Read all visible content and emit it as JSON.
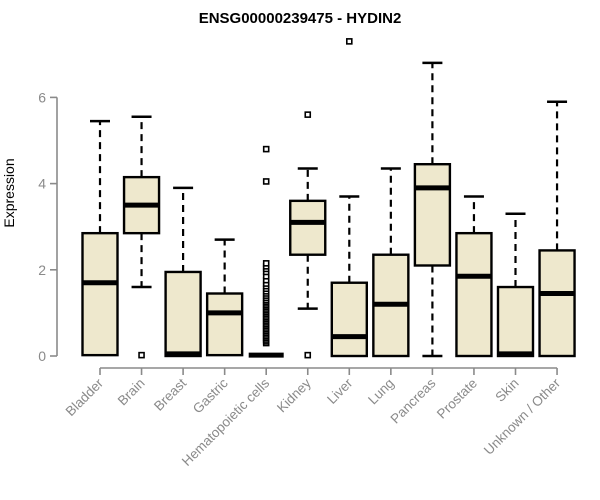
{
  "title": "ENSG00000239475 - HYDIN2",
  "chart_data": {
    "type": "boxplot",
    "title": "ENSG00000239475 - HYDIN2",
    "xlabel": "",
    "ylabel": "Expression",
    "ylim": [
      -0.3,
      7.5
    ],
    "yticks": [
      0,
      2,
      4,
      6
    ],
    "grid": false,
    "legend": false,
    "categories": [
      "Bladder",
      "Brain",
      "Breast",
      "Gastric",
      "Hematopoietic cells",
      "Kidney",
      "Liver",
      "Lung",
      "Pancreas",
      "Prostate",
      "Skin",
      "Unknown / Other"
    ],
    "boxes": [
      {
        "category": "Bladder",
        "whisker_low": 0.02,
        "q1": 0.02,
        "median": 1.7,
        "q3": 2.85,
        "whisker_high": 5.45,
        "outliers": []
      },
      {
        "category": "Brain",
        "whisker_low": 1.6,
        "q1": 2.85,
        "median": 3.5,
        "q3": 4.15,
        "whisker_high": 5.55,
        "outliers": [
          0.02
        ]
      },
      {
        "category": "Breast",
        "whisker_low": 0,
        "q1": 0,
        "median": 0.05,
        "q3": 1.95,
        "whisker_high": 3.9,
        "outliers": []
      },
      {
        "category": "Gastric",
        "whisker_low": 0.02,
        "q1": 0.02,
        "median": 1.0,
        "q3": 1.45,
        "whisker_high": 2.7,
        "outliers": []
      },
      {
        "category": "Hematopoietic cells",
        "whisker_low": 0,
        "q1": 0,
        "median": 0.02,
        "q3": 0,
        "whisker_high": 0,
        "outliers": [
          0.3,
          0.34,
          0.38,
          0.42,
          0.46,
          0.5,
          0.54,
          0.58,
          0.62,
          0.66,
          0.7,
          0.74,
          0.78,
          0.82,
          0.86,
          0.9,
          0.94,
          0.98,
          1.02,
          1.06,
          1.1,
          1.14,
          1.18,
          1.22,
          1.26,
          1.3,
          1.35,
          1.4,
          1.45,
          1.5,
          1.56,
          1.62,
          1.68,
          1.76,
          1.85,
          1.95,
          2.02,
          2.08,
          2.15,
          4.05,
          4.8
        ]
      },
      {
        "category": "Kidney",
        "whisker_low": 1.1,
        "q1": 2.35,
        "median": 3.1,
        "q3": 3.6,
        "whisker_high": 4.35,
        "outliers": [
          0.02,
          5.6
        ]
      },
      {
        "category": "Liver",
        "whisker_low": 0,
        "q1": 0,
        "median": 0.45,
        "q3": 1.7,
        "whisker_high": 3.7,
        "outliers": [
          7.3
        ]
      },
      {
        "category": "Lung",
        "whisker_low": 0,
        "q1": 0,
        "median": 1.2,
        "q3": 2.35,
        "whisker_high": 4.35,
        "outliers": []
      },
      {
        "category": "Pancreas",
        "whisker_low": 0,
        "q1": 2.1,
        "median": 3.9,
        "q3": 4.45,
        "whisker_high": 6.8,
        "outliers": []
      },
      {
        "category": "Prostate",
        "whisker_low": 0,
        "q1": 0,
        "median": 1.85,
        "q3": 2.85,
        "whisker_high": 3.7,
        "outliers": []
      },
      {
        "category": "Skin",
        "whisker_low": 0,
        "q1": 0,
        "median": 0.05,
        "q3": 1.6,
        "whisker_high": 3.3,
        "outliers": []
      },
      {
        "category": "Unknown / Other",
        "whisker_low": 0,
        "q1": 0,
        "median": 1.45,
        "q3": 2.45,
        "whisker_high": 5.9,
        "outliers": []
      }
    ],
    "style": {
      "box_fill": "#EEE8CD",
      "box_border": "#000000",
      "median_color": "#000000",
      "whisker_color": "#000000",
      "outlier_marker": "open-square",
      "outlier_fill": "#ffffff",
      "axis_color": "#8A8A8A",
      "label_color": "#8A8A8A",
      "title_color": "#000000",
      "background": "#ffffff"
    }
  }
}
